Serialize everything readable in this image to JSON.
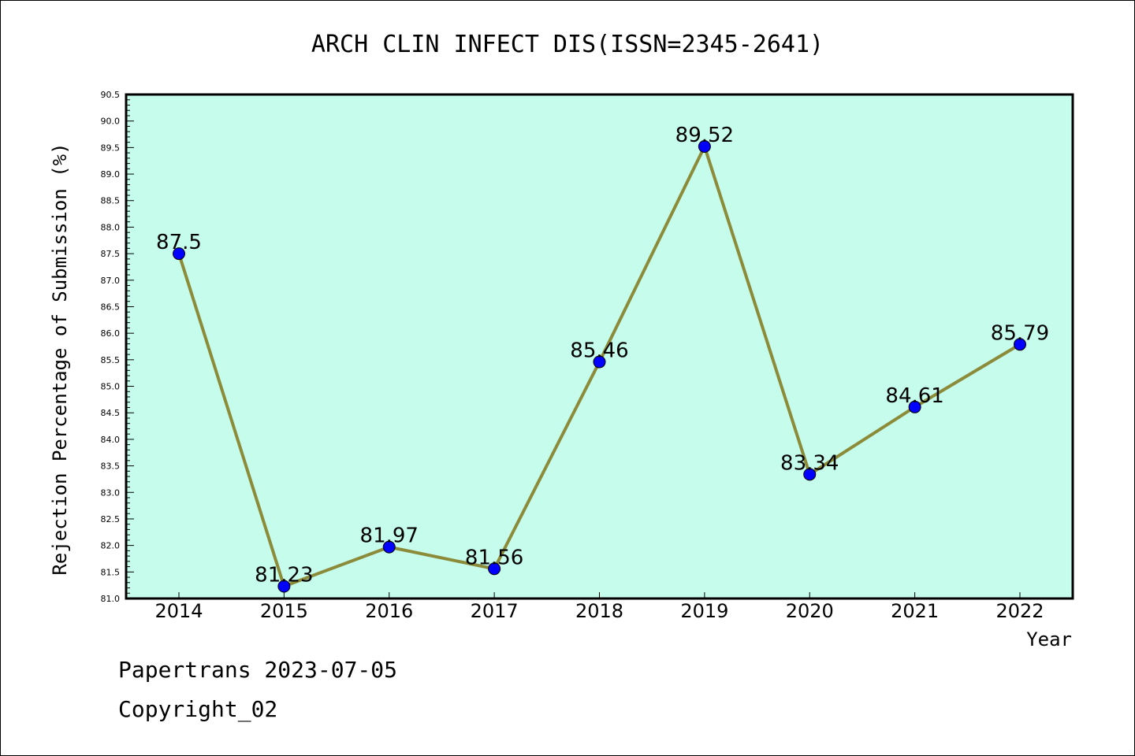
{
  "chart_data": {
    "type": "line",
    "title": "ARCH CLIN INFECT DIS(ISSN=2345-2641)",
    "xlabel": "Year",
    "ylabel": "Rejection Percentage of Submission (%)",
    "categories": [
      "2014",
      "2015",
      "2016",
      "2017",
      "2018",
      "2019",
      "2020",
      "2021",
      "2022"
    ],
    "series": [
      {
        "values": [
          87.5,
          81.23,
          81.97,
          81.56,
          85.46,
          89.52,
          83.34,
          84.61,
          85.79
        ]
      }
    ],
    "data_labels": [
      "87.5",
      "81.23",
      "81.97",
      "81.56",
      "85.46",
      "89.52",
      "83.34",
      "84.61",
      "85.79"
    ],
    "ylim": [
      81.0,
      90.5
    ],
    "yticks": [
      "81.0",
      "81.5",
      "82.0",
      "82.5",
      "83.0",
      "83.5",
      "84.0",
      "84.5",
      "85.0",
      "85.5",
      "86.0",
      "86.5",
      "87.0",
      "87.5",
      "88.0",
      "88.5",
      "89.0",
      "89.5",
      "90.0",
      "90.5"
    ],
    "grid": false,
    "colors": {
      "plot_background": "#c6fcec",
      "line": "#8b8b3a",
      "marker": "#0000ff"
    }
  },
  "footer": {
    "source": "Papertrans 2023-07-05",
    "copyright": "Copyright_02"
  }
}
